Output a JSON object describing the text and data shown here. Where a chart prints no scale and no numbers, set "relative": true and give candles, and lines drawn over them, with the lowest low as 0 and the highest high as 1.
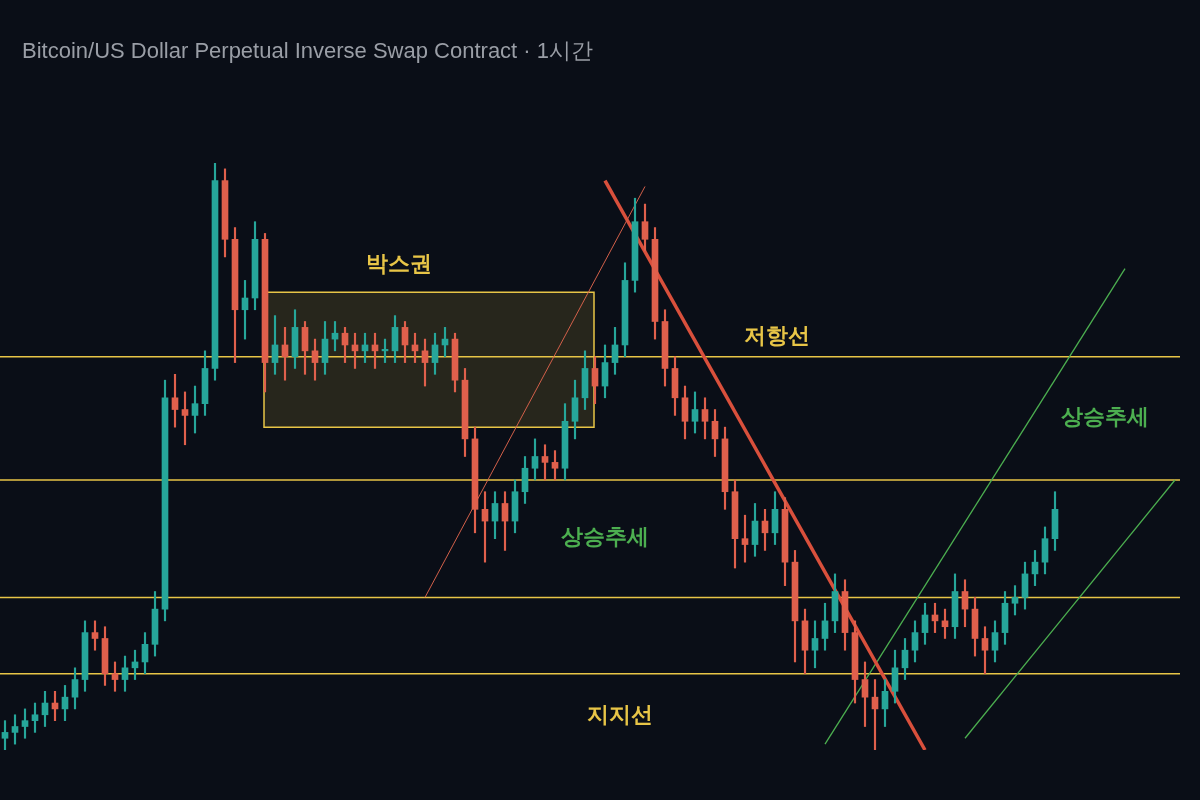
{
  "chart_data": {
    "type": "candlestick",
    "title": "Bitcoin/US Dollar Perpetual Inverse Swap Contract · 1시간",
    "relative": true,
    "tick_labels": false,
    "categories": [
      null,
      null,
      null,
      null,
      null,
      null,
      null,
      null,
      null,
      null,
      null,
      null,
      null,
      null,
      null,
      null,
      null,
      null,
      null,
      null,
      null,
      null,
      null,
      null,
      null,
      null,
      null,
      null,
      null,
      null,
      null,
      null,
      null,
      null,
      null,
      null,
      null,
      null,
      null,
      null,
      null,
      null,
      null,
      null,
      null,
      null,
      null,
      null,
      null,
      null,
      null,
      null,
      null,
      null,
      null,
      null,
      null,
      null,
      null,
      null,
      null,
      null,
      null,
      null,
      null,
      null,
      null,
      null,
      null,
      null,
      null,
      null,
      null,
      null,
      null,
      null,
      null,
      null,
      null,
      null,
      null,
      null,
      null,
      null,
      null,
      null,
      null,
      null,
      null,
      null,
      null,
      null,
      null,
      null,
      null,
      null,
      null,
      null,
      null,
      null,
      null,
      null,
      null,
      null,
      null,
      null,
      null,
      null,
      null,
      null,
      null,
      null,
      null,
      null,
      null,
      null,
      null,
      null,
      null,
      null
    ],
    "ohlc": [
      [
        0.02,
        0.05,
        0.0,
        0.03
      ],
      [
        0.03,
        0.06,
        0.01,
        0.04
      ],
      [
        0.04,
        0.07,
        0.02,
        0.05
      ],
      [
        0.05,
        0.08,
        0.03,
        0.06
      ],
      [
        0.06,
        0.1,
        0.04,
        0.08
      ],
      [
        0.08,
        0.1,
        0.05,
        0.07
      ],
      [
        0.07,
        0.11,
        0.05,
        0.09
      ],
      [
        0.09,
        0.14,
        0.07,
        0.12
      ],
      [
        0.12,
        0.22,
        0.1,
        0.2
      ],
      [
        0.2,
        0.22,
        0.17,
        0.19
      ],
      [
        0.19,
        0.21,
        0.11,
        0.13
      ],
      [
        0.13,
        0.15,
        0.1,
        0.12
      ],
      [
        0.12,
        0.16,
        0.1,
        0.14
      ],
      [
        0.14,
        0.17,
        0.12,
        0.15
      ],
      [
        0.15,
        0.2,
        0.13,
        0.18
      ],
      [
        0.18,
        0.27,
        0.16,
        0.24
      ],
      [
        0.24,
        0.63,
        0.22,
        0.6
      ],
      [
        0.6,
        0.64,
        0.55,
        0.58
      ],
      [
        0.58,
        0.61,
        0.52,
        0.57
      ],
      [
        0.57,
        0.62,
        0.54,
        0.59
      ],
      [
        0.59,
        0.68,
        0.57,
        0.65
      ],
      [
        0.65,
        1.0,
        0.63,
        0.97
      ],
      [
        0.97,
        0.99,
        0.84,
        0.87
      ],
      [
        0.87,
        0.89,
        0.66,
        0.75
      ],
      [
        0.75,
        0.8,
        0.7,
        0.77
      ],
      [
        0.77,
        0.9,
        0.75,
        0.87
      ],
      [
        0.87,
        0.88,
        0.61,
        0.66
      ],
      [
        0.66,
        0.74,
        0.64,
        0.69
      ],
      [
        0.69,
        0.72,
        0.63,
        0.67
      ],
      [
        0.67,
        0.75,
        0.65,
        0.72
      ],
      [
        0.72,
        0.73,
        0.64,
        0.68
      ],
      [
        0.68,
        0.7,
        0.63,
        0.66
      ],
      [
        0.66,
        0.73,
        0.64,
        0.7
      ],
      [
        0.7,
        0.73,
        0.68,
        0.71
      ],
      [
        0.71,
        0.72,
        0.66,
        0.69
      ],
      [
        0.69,
        0.71,
        0.65,
        0.68
      ],
      [
        0.68,
        0.71,
        0.66,
        0.69
      ],
      [
        0.69,
        0.71,
        0.65,
        0.68
      ],
      [
        0.68,
        0.7,
        0.66,
        0.68
      ],
      [
        0.68,
        0.74,
        0.66,
        0.72
      ],
      [
        0.72,
        0.73,
        0.66,
        0.69
      ],
      [
        0.69,
        0.71,
        0.66,
        0.68
      ],
      [
        0.68,
        0.7,
        0.62,
        0.66
      ],
      [
        0.66,
        0.71,
        0.64,
        0.69
      ],
      [
        0.69,
        0.72,
        0.67,
        0.7
      ],
      [
        0.7,
        0.71,
        0.61,
        0.63
      ],
      [
        0.63,
        0.65,
        0.5,
        0.53
      ],
      [
        0.53,
        0.55,
        0.37,
        0.41
      ],
      [
        0.41,
        0.44,
        0.32,
        0.39
      ],
      [
        0.39,
        0.44,
        0.36,
        0.42
      ],
      [
        0.42,
        0.44,
        0.34,
        0.39
      ],
      [
        0.39,
        0.46,
        0.37,
        0.44
      ],
      [
        0.44,
        0.5,
        0.42,
        0.48
      ],
      [
        0.48,
        0.53,
        0.46,
        0.5
      ],
      [
        0.5,
        0.52,
        0.46,
        0.49
      ],
      [
        0.49,
        0.51,
        0.46,
        0.48
      ],
      [
        0.48,
        0.59,
        0.46,
        0.56
      ],
      [
        0.56,
        0.63,
        0.53,
        0.6
      ],
      [
        0.6,
        0.68,
        0.58,
        0.65
      ],
      [
        0.65,
        0.67,
        0.59,
        0.62
      ],
      [
        0.62,
        0.69,
        0.6,
        0.66
      ],
      [
        0.66,
        0.72,
        0.64,
        0.69
      ],
      [
        0.69,
        0.83,
        0.67,
        0.8
      ],
      [
        0.8,
        0.94,
        0.78,
        0.9
      ],
      [
        0.9,
        0.93,
        0.85,
        0.87
      ],
      [
        0.87,
        0.89,
        0.7,
        0.73
      ],
      [
        0.73,
        0.75,
        0.62,
        0.65
      ],
      [
        0.65,
        0.67,
        0.57,
        0.6
      ],
      [
        0.6,
        0.62,
        0.53,
        0.56
      ],
      [
        0.56,
        0.61,
        0.54,
        0.58
      ],
      [
        0.58,
        0.6,
        0.53,
        0.56
      ],
      [
        0.56,
        0.58,
        0.5,
        0.53
      ],
      [
        0.53,
        0.55,
        0.41,
        0.44
      ],
      [
        0.44,
        0.46,
        0.31,
        0.36
      ],
      [
        0.36,
        0.4,
        0.32,
        0.35
      ],
      [
        0.35,
        0.42,
        0.33,
        0.39
      ],
      [
        0.39,
        0.41,
        0.34,
        0.37
      ],
      [
        0.37,
        0.44,
        0.35,
        0.41
      ],
      [
        0.41,
        0.43,
        0.28,
        0.32
      ],
      [
        0.32,
        0.34,
        0.15,
        0.22
      ],
      [
        0.22,
        0.24,
        0.13,
        0.17
      ],
      [
        0.17,
        0.22,
        0.14,
        0.19
      ],
      [
        0.19,
        0.25,
        0.17,
        0.22
      ],
      [
        0.22,
        0.3,
        0.2,
        0.27
      ],
      [
        0.27,
        0.29,
        0.17,
        0.2
      ],
      [
        0.2,
        0.22,
        0.08,
        0.12
      ],
      [
        0.12,
        0.15,
        0.04,
        0.09
      ],
      [
        0.09,
        0.12,
        0.0,
        0.07
      ],
      [
        0.07,
        0.12,
        0.04,
        0.1
      ],
      [
        0.1,
        0.17,
        0.08,
        0.14
      ],
      [
        0.14,
        0.19,
        0.12,
        0.17
      ],
      [
        0.17,
        0.22,
        0.15,
        0.2
      ],
      [
        0.2,
        0.25,
        0.18,
        0.23
      ],
      [
        0.23,
        0.25,
        0.2,
        0.22
      ],
      [
        0.22,
        0.24,
        0.19,
        0.21
      ],
      [
        0.21,
        0.3,
        0.19,
        0.27
      ],
      [
        0.27,
        0.29,
        0.21,
        0.24
      ],
      [
        0.24,
        0.26,
        0.16,
        0.19
      ],
      [
        0.19,
        0.21,
        0.13,
        0.17
      ],
      [
        0.17,
        0.22,
        0.15,
        0.2
      ],
      [
        0.2,
        0.27,
        0.18,
        0.25
      ],
      [
        0.25,
        0.28,
        0.23,
        0.26
      ],
      [
        0.26,
        0.32,
        0.24,
        0.3
      ],
      [
        0.3,
        0.34,
        0.28,
        0.32
      ],
      [
        0.32,
        0.38,
        0.3,
        0.36
      ],
      [
        0.36,
        0.44,
        0.34,
        0.41
      ],
      null,
      null,
      null,
      null,
      null,
      null,
      null,
      null,
      null,
      null,
      null,
      null,
      null,
      null
    ],
    "series": [
      {
        "type": "line",
        "color": "#d2604a",
        "values": [
          null,
          null,
          null,
          null,
          null,
          null,
          null,
          null,
          null,
          null,
          null,
          null,
          null,
          null,
          null,
          null,
          null,
          null,
          null,
          null,
          null,
          null,
          null,
          null,
          null,
          null,
          null,
          null,
          null,
          null,
          null,
          null,
          null,
          null,
          null,
          null,
          null,
          null,
          null,
          null,
          null,
          null,
          0.26,
          null,
          null,
          null,
          null,
          null,
          null,
          null,
          null,
          null,
          null,
          null,
          null,
          null,
          null,
          null,
          null,
          null,
          null,
          null,
          null,
          null,
          0.96,
          null,
          null,
          null,
          null,
          null,
          null,
          null,
          null,
          null,
          null,
          null,
          null,
          null,
          null,
          null,
          null,
          null,
          null,
          null,
          null,
          null,
          null,
          null,
          null,
          null,
          null,
          null,
          null,
          null,
          null,
          null,
          null,
          null,
          null,
          null,
          null,
          null,
          null,
          null,
          null,
          null,
          null,
          null,
          null,
          null,
          null,
          null,
          null,
          null,
          null,
          null,
          null,
          null,
          null,
          null
        ]
      },
      {
        "type": "line",
        "color": "#d9503c",
        "values": [
          null,
          null,
          null,
          null,
          null,
          null,
          null,
          null,
          null,
          null,
          null,
          null,
          null,
          null,
          null,
          null,
          null,
          null,
          null,
          null,
          null,
          null,
          null,
          null,
          null,
          null,
          null,
          null,
          null,
          null,
          null,
          null,
          null,
          null,
          null,
          null,
          null,
          null,
          null,
          null,
          null,
          null,
          null,
          null,
          null,
          null,
          null,
          null,
          null,
          null,
          null,
          null,
          null,
          null,
          null,
          null,
          null,
          null,
          null,
          null,
          0.97,
          null,
          null,
          null,
          null,
          null,
          null,
          null,
          null,
          null,
          null,
          null,
          null,
          null,
          null,
          null,
          null,
          null,
          null,
          null,
          null,
          null,
          null,
          null,
          null,
          null,
          null,
          null,
          null,
          null,
          null,
          null,
          0.0,
          null,
          null,
          null,
          null,
          null,
          null,
          null,
          null,
          null,
          null,
          null,
          null,
          null,
          null,
          null,
          null,
          null,
          null,
          null,
          null,
          null,
          null,
          null,
          null,
          null,
          null,
          null
        ]
      },
      {
        "type": "line",
        "color": "#4caf50",
        "values": [
          null,
          null,
          null,
          null,
          null,
          null,
          null,
          null,
          null,
          null,
          null,
          null,
          null,
          null,
          null,
          null,
          null,
          null,
          null,
          null,
          null,
          null,
          null,
          null,
          null,
          null,
          null,
          null,
          null,
          null,
          null,
          null,
          null,
          null,
          null,
          null,
          null,
          null,
          null,
          null,
          null,
          null,
          null,
          null,
          null,
          null,
          null,
          null,
          null,
          null,
          null,
          null,
          null,
          null,
          null,
          null,
          null,
          null,
          null,
          null,
          null,
          null,
          null,
          null,
          null,
          null,
          null,
          null,
          null,
          null,
          null,
          null,
          null,
          null,
          null,
          null,
          null,
          null,
          null,
          null,
          null,
          null,
          0.01,
          null,
          null,
          null,
          null,
          null,
          null,
          null,
          null,
          null,
          null,
          null,
          null,
          null,
          null,
          null,
          null,
          null,
          null,
          null,
          null,
          null,
          null,
          null,
          null,
          null,
          null,
          null,
          null,
          null,
          0.82,
          null,
          null,
          null,
          null,
          null,
          null,
          null
        ]
      },
      {
        "type": "line",
        "color": "#4caf50",
        "values": [
          null,
          null,
          null,
          null,
          null,
          null,
          null,
          null,
          null,
          null,
          null,
          null,
          null,
          null,
          null,
          null,
          null,
          null,
          null,
          null,
          null,
          null,
          null,
          null,
          null,
          null,
          null,
          null,
          null,
          null,
          null,
          null,
          null,
          null,
          null,
          null,
          null,
          null,
          null,
          null,
          null,
          null,
          null,
          null,
          null,
          null,
          null,
          null,
          null,
          null,
          null,
          null,
          null,
          null,
          null,
          null,
          null,
          null,
          null,
          null,
          null,
          null,
          null,
          null,
          null,
          null,
          null,
          null,
          null,
          null,
          null,
          null,
          null,
          null,
          null,
          null,
          null,
          null,
          null,
          null,
          null,
          null,
          null,
          null,
          null,
          null,
          null,
          null,
          null,
          null,
          null,
          null,
          null,
          null,
          null,
          null,
          0.02,
          null,
          null,
          null,
          null,
          null,
          null,
          null,
          null,
          null,
          null,
          null,
          null,
          null,
          null,
          null,
          null,
          null,
          null,
          null,
          null,
          0.46,
          null,
          null
        ]
      }
    ],
    "ref_lines": [
      {
        "axis": "y",
        "value": 0.67,
        "label": "저항선",
        "color": "#e8c547"
      },
      {
        "axis": "y",
        "value": 0.46,
        "color": "#e8c547"
      },
      {
        "axis": "y",
        "value": 0.26,
        "color": "#e8c547"
      },
      {
        "axis": "y",
        "value": 0.13,
        "label": "지지선",
        "color": "#e8c547"
      }
    ],
    "bands": [
      {
        "axis": "y",
        "from": 0.55,
        "to": 0.78,
        "label": "박스권",
        "color": "#e8c547"
      }
    ],
    "annotations": [
      "상승추세",
      "상승추세"
    ]
  }
}
